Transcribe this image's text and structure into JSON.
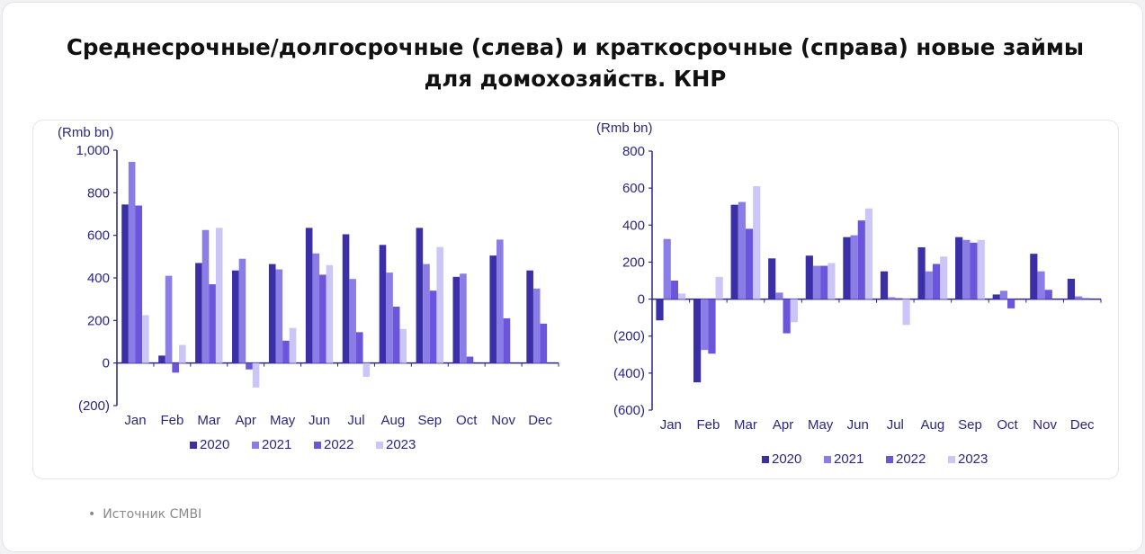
{
  "title": "Среднесрочные/долгосрочные (слева) и краткосрочные (справа) новые займы для домохозяйств. КНР",
  "source": "Источник CMBI",
  "bullet": "•",
  "chart_data": [
    {
      "type": "bar",
      "unit": "(Rmb bn)",
      "categories": [
        "Jan",
        "Feb",
        "Mar",
        "Apr",
        "May",
        "Jun",
        "Jul",
        "Aug",
        "Sep",
        "Oct",
        "Nov",
        "Dec"
      ],
      "ylim": [
        -200,
        1000
      ],
      "yticks": [
        -200,
        0,
        200,
        400,
        600,
        800,
        1000
      ],
      "ytick_labels": [
        "(200)",
        "0",
        "200",
        "400",
        "600",
        "800",
        "1,000"
      ],
      "legend_position": "bottom",
      "series": [
        {
          "name": "2020",
          "color": "#3b2fa8",
          "values": [
            745,
            35,
            470,
            435,
            465,
            635,
            605,
            555,
            635,
            405,
            505,
            435
          ]
        },
        {
          "name": "2021",
          "color": "#8a7ee6",
          "values": [
            945,
            410,
            625,
            490,
            440,
            515,
            395,
            425,
            465,
            420,
            580,
            350
          ]
        },
        {
          "name": "2022",
          "color": "#6a55dc",
          "values": [
            740,
            -45,
            370,
            -30,
            105,
            415,
            145,
            265,
            340,
            30,
            210,
            185
          ]
        },
        {
          "name": "2023",
          "color": "#ccc5f7",
          "values": [
            225,
            85,
            635,
            -115,
            165,
            460,
            -65,
            160,
            545,
            null,
            null,
            null
          ]
        }
      ]
    },
    {
      "type": "bar",
      "unit": "(Rmb bn)",
      "categories": [
        "Jan",
        "Feb",
        "Mar",
        "Apr",
        "May",
        "Jun",
        "Jul",
        "Aug",
        "Sep",
        "Oct",
        "Nov",
        "Dec"
      ],
      "ylim": [
        -600,
        800
      ],
      "yticks": [
        -600,
        -400,
        -200,
        0,
        200,
        400,
        600,
        800
      ],
      "ytick_labels": [
        "(600)",
        "(400)",
        "(200)",
        "0",
        "200",
        "400",
        "600",
        "800"
      ],
      "legend_position": "bottom",
      "series": [
        {
          "name": "2020",
          "color": "#3b2fa8",
          "values": [
            -115,
            -450,
            510,
            220,
            235,
            335,
            150,
            280,
            335,
            25,
            245,
            110
          ]
        },
        {
          "name": "2021",
          "color": "#8a7ee6",
          "values": [
            325,
            -275,
            525,
            35,
            180,
            345,
            10,
            150,
            320,
            45,
            150,
            15
          ]
        },
        {
          "name": "2022",
          "color": "#6a55dc",
          "values": [
            100,
            -295,
            380,
            -185,
            180,
            425,
            5,
            190,
            305,
            -50,
            50,
            5
          ]
        },
        {
          "name": "2023",
          "color": "#ccc5f7",
          "values": [
            30,
            120,
            610,
            -125,
            195,
            490,
            -140,
            230,
            320,
            null,
            null,
            null
          ]
        }
      ]
    }
  ]
}
